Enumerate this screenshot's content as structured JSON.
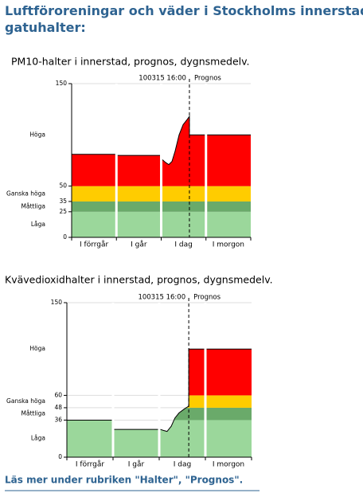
{
  "title": [
    "Luftföroreningar och väder i Stockholms innerstad,",
    "gatuhalter:"
  ],
  "footer": "Läs mer under rubriken \"Halter\", \"Prognos\".",
  "chart_data": [
    {
      "type": "area",
      "title": "PM10-halter i innerstad, prognos, dygnsmedelv.",
      "categories": [
        "I förrgår",
        "I går",
        "I dag",
        "I morgon"
      ],
      "xlim": [
        0,
        4
      ],
      "x": [
        0,
        0.98,
        1.0,
        1.02,
        1.98,
        2.0,
        2.02,
        2.1,
        2.17,
        2.24,
        2.31,
        2.4,
        2.49,
        2.58,
        2.63,
        2.63,
        2.98,
        3.0,
        3.02,
        4.0
      ],
      "values": [
        81,
        81,
        null,
        80,
        80,
        null,
        76,
        73,
        71,
        74,
        84,
        100,
        110,
        115,
        118,
        100,
        100,
        null,
        100,
        100
      ],
      "ylim": [
        0,
        150
      ],
      "yticks": [
        0,
        25,
        35,
        50,
        150
      ],
      "grid": true,
      "bands": [
        {
          "label": "Låga",
          "from": 0,
          "to": 25,
          "color": "#9bd79b"
        },
        {
          "label": "Måttliga",
          "from": 25,
          "to": 35,
          "color": "#6aaa6a"
        },
        {
          "label": "Ganska höga",
          "from": 35,
          "to": 50,
          "color": "#ffcc00"
        },
        {
          "label": "Höga",
          "from": 50,
          "to": 150,
          "color": "#ff0000"
        }
      ],
      "annotation": "100315 16:00",
      "forecast_label": "Prognos",
      "forecast_x": 2.63
    },
    {
      "type": "area",
      "title": "Kvävedioxidhalter i innerstad, prognos, dygnsmedelv.",
      "categories": [
        "I förrgår",
        "I går",
        "I dag",
        "I morgon"
      ],
      "xlim": [
        0,
        4
      ],
      "x": [
        0,
        0.98,
        1.0,
        1.02,
        1.98,
        2.0,
        2.02,
        2.09,
        2.17,
        2.26,
        2.34,
        2.43,
        2.55,
        2.62,
        2.64,
        2.64,
        2.98,
        3.0,
        3.02,
        4.0
      ],
      "values": [
        36,
        36,
        null,
        27,
        27,
        null,
        27,
        26,
        25,
        30,
        38,
        43,
        47,
        49,
        50,
        105,
        105,
        null,
        105,
        105
      ],
      "ylim": [
        0,
        150
      ],
      "yticks": [
        0,
        36,
        48,
        60,
        150
      ],
      "grid": true,
      "bands": [
        {
          "label": "Låga",
          "from": 0,
          "to": 36,
          "color": "#9bd79b"
        },
        {
          "label": "Måttliga",
          "from": 36,
          "to": 48,
          "color": "#6aaa6a"
        },
        {
          "label": "Ganska höga",
          "from": 48,
          "to": 60,
          "color": "#ffcc00"
        },
        {
          "label": "Höga",
          "from": 60,
          "to": 150,
          "color": "#ff0000"
        }
      ],
      "annotation": "100315 16:00",
      "forecast_label": "Prognos",
      "forecast_x": 2.64
    }
  ]
}
